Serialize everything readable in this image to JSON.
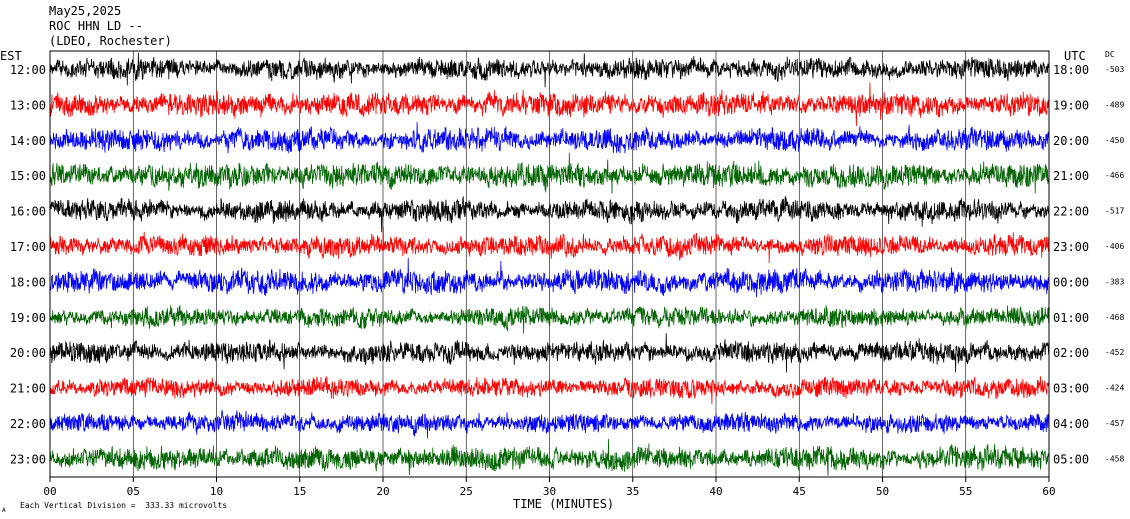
{
  "header": {
    "date": "May25,2025",
    "station": "ROC HHN LD --",
    "network": "(LDEO, Rochester)"
  },
  "chart_data": {
    "type": "line",
    "title": "May25,2025 ROC HHN LD -- (LDEO, Rochester)",
    "xlabel": "TIME (MINUTES)",
    "xlim": [
      0,
      60
    ],
    "x_ticks": [
      "00",
      "05",
      "10",
      "15",
      "20",
      "25",
      "30",
      "35",
      "40",
      "45",
      "50",
      "55",
      "60"
    ],
    "left_axis_label": "EST",
    "right_axis_label": "UTC",
    "dc_label": "DC",
    "grid": "vertical lines every 5 minutes",
    "rows": [
      {
        "est": "12:00",
        "utc": "18:00",
        "dc": "-503",
        "color": "#000000",
        "amplitude": 0.55
      },
      {
        "est": "13:00",
        "utc": "19:00",
        "dc": "-489",
        "color": "#ff0000",
        "amplitude": 0.6
      },
      {
        "est": "14:00",
        "utc": "20:00",
        "dc": "-450",
        "color": "#0000ff",
        "amplitude": 0.6
      },
      {
        "est": "15:00",
        "utc": "21:00",
        "dc": "-466",
        "color": "#006400",
        "amplitude": 0.65
      },
      {
        "est": "16:00",
        "utc": "22:00",
        "dc": "-517",
        "color": "#000000",
        "amplitude": 0.55
      },
      {
        "est": "17:00",
        "utc": "23:00",
        "dc": "-406",
        "color": "#ff0000",
        "amplitude": 0.55
      },
      {
        "est": "18:00",
        "utc": "00:00",
        "dc": "-383",
        "color": "#0000ff",
        "amplitude": 0.6
      },
      {
        "est": "19:00",
        "utc": "01:00",
        "dc": "-468",
        "color": "#006400",
        "amplitude": 0.5
      },
      {
        "est": "20:00",
        "utc": "02:00",
        "dc": "-452",
        "color": "#000000",
        "amplitude": 0.55
      },
      {
        "est": "21:00",
        "utc": "03:00",
        "dc": "-424",
        "color": "#ff0000",
        "amplitude": 0.5
      },
      {
        "est": "22:00",
        "utc": "04:00",
        "dc": "-457",
        "color": "#0000ff",
        "amplitude": 0.5
      },
      {
        "est": "23:00",
        "utc": "05:00",
        "dc": "-458",
        "color": "#006400",
        "amplitude": 0.6
      }
    ],
    "footnote": "Each Vertical Division =  333.33 microvolts",
    "corner_mark": "A"
  }
}
